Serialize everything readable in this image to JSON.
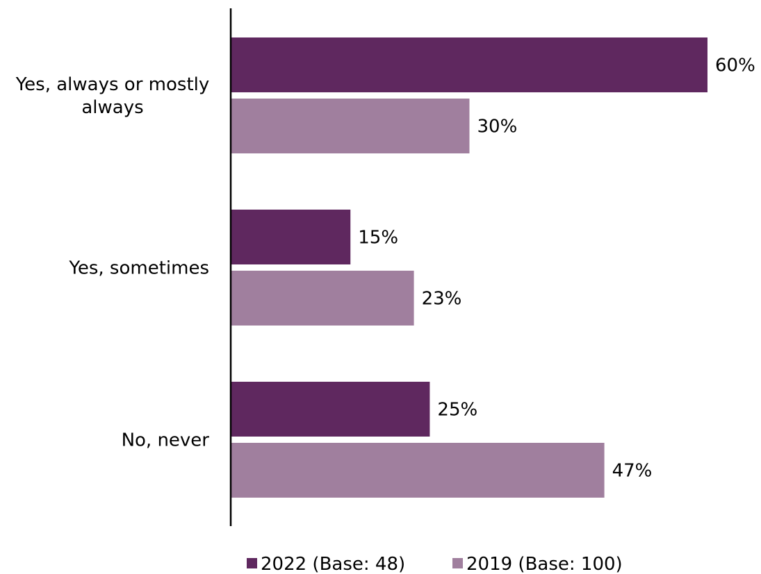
{
  "chart_data": {
    "type": "bar",
    "orientation": "horizontal",
    "categories": [
      [
        "Yes, always or mostly",
        "always"
      ],
      [
        "Yes, sometimes"
      ],
      [
        "No, never"
      ]
    ],
    "series": [
      {
        "name": "2022 (Base: 48)",
        "color": "#5f285f",
        "values": [
          60,
          15,
          25
        ]
      },
      {
        "name": "2019 (Base: 100)",
        "color": "#a07f9e",
        "values": [
          30,
          23,
          47
        ]
      }
    ],
    "value_suffix": "%",
    "xlim": [
      0,
      60
    ],
    "grid": false,
    "legend": "bottom"
  }
}
